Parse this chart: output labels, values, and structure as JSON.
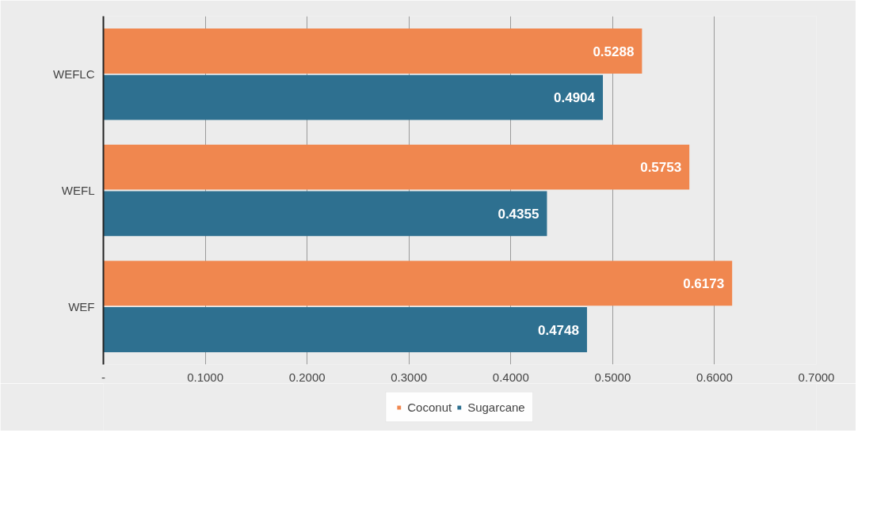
{
  "chart_data": {
    "type": "bar",
    "orientation": "horizontal",
    "categories": [
      "WEFLC",
      "WEFL",
      "WEF"
    ],
    "series": [
      {
        "name": "Coconut",
        "color": "#f0874f",
        "values": [
          0.5288,
          0.5753,
          0.6173
        ]
      },
      {
        "name": "Sugarcane",
        "color": "#2e7090",
        "values": [
          0.4904,
          0.4355,
          0.4748
        ]
      }
    ],
    "xlim": [
      0,
      0.7
    ],
    "xticks": [
      {
        "value": 0,
        "label": "-"
      },
      {
        "value": 0.1,
        "label": "0.1000"
      },
      {
        "value": 0.2,
        "label": "0.2000"
      },
      {
        "value": 0.3,
        "label": "0.3000"
      },
      {
        "value": 0.4,
        "label": "0.4000"
      },
      {
        "value": 0.5,
        "label": "0.5000"
      },
      {
        "value": 0.6,
        "label": "0.6000"
      },
      {
        "value": 0.7,
        "label": "0.7000"
      }
    ],
    "grid": "x",
    "legend": "bottom",
    "data_labels": true
  }
}
